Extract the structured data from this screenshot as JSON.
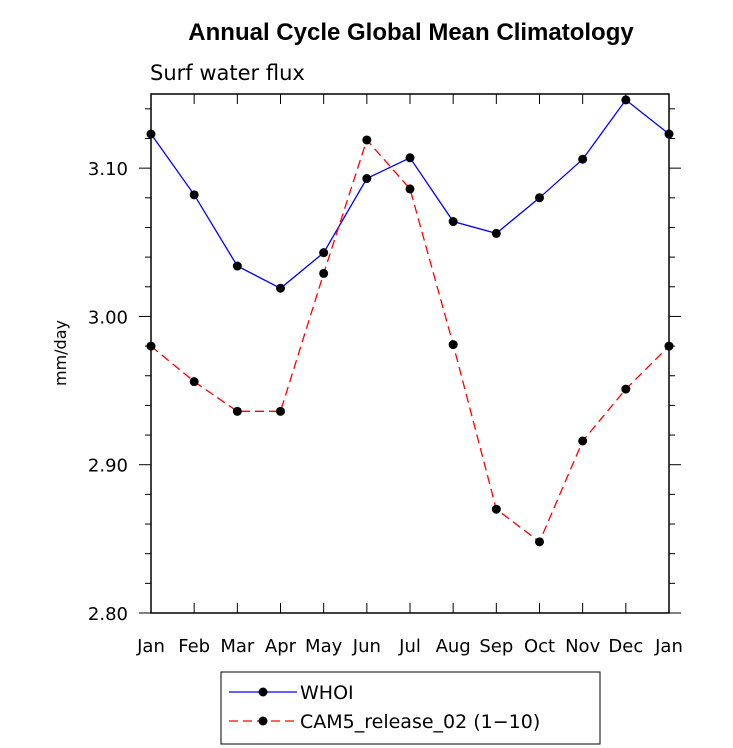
{
  "chart_data": {
    "type": "line",
    "title": "Annual Cycle Global Mean Climatology",
    "subtitle": "Surf water flux",
    "xlabel": "",
    "ylabel": "mm/day",
    "categories": [
      "Jan",
      "Feb",
      "Mar",
      "Apr",
      "May",
      "Jun",
      "Jul",
      "Aug",
      "Sep",
      "Oct",
      "Nov",
      "Dec",
      "Jan"
    ],
    "ylim": [
      2.8,
      3.15
    ],
    "yticks": [
      "2.80",
      "2.90",
      "3.00",
      "3.10"
    ],
    "series": [
      {
        "name": "WHOI",
        "color": "#0000ff",
        "dash": "solid",
        "values": [
          3.123,
          3.082,
          3.034,
          3.019,
          3.043,
          3.093,
          3.107,
          3.064,
          3.056,
          3.08,
          3.106,
          3.146,
          3.123
        ]
      },
      {
        "name": "CAM5_release_02 (1−10)",
        "color": "#ff0000",
        "dash": "dashed",
        "values": [
          2.98,
          2.956,
          2.936,
          2.936,
          3.029,
          3.119,
          3.086,
          2.981,
          2.87,
          2.848,
          2.916,
          2.951,
          2.98
        ]
      }
    ]
  }
}
